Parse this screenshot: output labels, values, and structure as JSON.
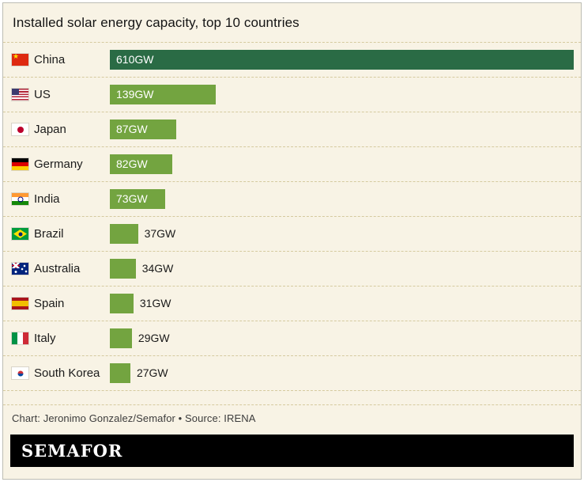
{
  "title": "Installed solar energy capacity, top 10 countries",
  "credit": "Chart: Jeronimo Gonzalez/Semafor • Source: IRENA",
  "footer": {
    "wordmark": "SEMAFOR"
  },
  "colors": {
    "background": "#f8f3e5",
    "dashed_line": "#d5ca9f",
    "bar_default": "#73a440",
    "bar_highlight": "#2a6b45",
    "bar_label_inside": "#ffffff",
    "bar_label_outside": "#1a1a1a"
  },
  "chart_data": {
    "type": "bar",
    "orientation": "horizontal",
    "title": "Installed solar energy capacity, top 10 countries",
    "unit": "GW",
    "max_value": 610,
    "xlim": [
      0,
      610
    ],
    "grid": false,
    "legend": false,
    "source": "IRENA",
    "categories": [
      "China",
      "US",
      "Japan",
      "Germany",
      "India",
      "Brazil",
      "Australia",
      "Spain",
      "Italy",
      "South Korea"
    ],
    "values": [
      610,
      139,
      87,
      82,
      73,
      37,
      34,
      31,
      29,
      27
    ],
    "rows": [
      {
        "country": "China",
        "value": 610,
        "label": "610GW",
        "flag": "china",
        "highlight": true
      },
      {
        "country": "US",
        "value": 139,
        "label": "139GW",
        "flag": "us",
        "highlight": false
      },
      {
        "country": "Japan",
        "value": 87,
        "label": "87GW",
        "flag": "japan",
        "highlight": false
      },
      {
        "country": "Germany",
        "value": 82,
        "label": "82GW",
        "flag": "germany",
        "highlight": false
      },
      {
        "country": "India",
        "value": 73,
        "label": "73GW",
        "flag": "india",
        "highlight": false
      },
      {
        "country": "Brazil",
        "value": 37,
        "label": "37GW",
        "flag": "brazil",
        "highlight": false
      },
      {
        "country": "Australia",
        "value": 34,
        "label": "34GW",
        "flag": "australia",
        "highlight": false
      },
      {
        "country": "Spain",
        "value": 31,
        "label": "31GW",
        "flag": "spain",
        "highlight": false
      },
      {
        "country": "Italy",
        "value": 29,
        "label": "29GW",
        "flag": "italy",
        "highlight": false
      },
      {
        "country": "South Korea",
        "value": 27,
        "label": "27GW",
        "flag": "southkorea",
        "highlight": false
      }
    ]
  }
}
